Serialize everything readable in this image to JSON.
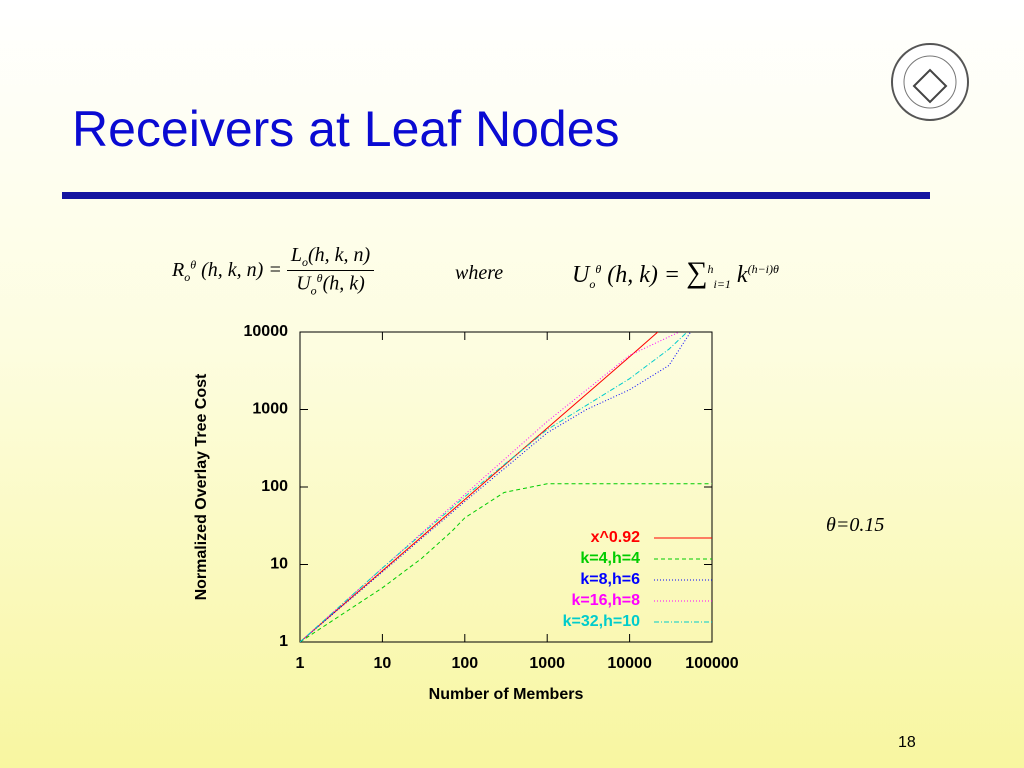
{
  "slide": {
    "title": "Receivers at Leaf Nodes",
    "page_number": "18",
    "annotation": "θ=0.15",
    "formula_left": {
      "lhs": {
        "base": "R",
        "sub": "o",
        "sup": "θ",
        "args": "(h, k, n) ="
      },
      "num": {
        "base": "L",
        "sub": "o",
        "args": "(h, k, n)"
      },
      "den": {
        "base": "U",
        "sub": "o",
        "sup": "θ",
        "args": "(h, k)"
      }
    },
    "where": "where",
    "formula_right": {
      "base": "U",
      "sub": "o",
      "sup": "θ",
      "args": "(h, k) =",
      "sum": "∑",
      "sum_top": "h",
      "sum_bottom": "i=1",
      "term": "k",
      "exp": "(h−i)θ"
    }
  },
  "chart_data": {
    "type": "line",
    "x_label": "Number of Members",
    "y_label": "Normalized Overlay Tree Cost",
    "x_log": true,
    "y_log": true,
    "xlim": [
      1,
      100000
    ],
    "ylim": [
      1,
      10000
    ],
    "xticks": [
      1,
      10,
      100,
      1000,
      10000,
      100000
    ],
    "yticks": [
      1,
      10,
      100,
      1000,
      10000
    ],
    "grid": false,
    "legend": "lower right",
    "series": [
      {
        "name": "x^0.92",
        "color": "#ff0000",
        "dash": "solid",
        "x": [
          1,
          10,
          100,
          1000,
          10000,
          22000
        ],
        "values": [
          1,
          8.3,
          69,
          575,
          4786,
          10000
        ]
      },
      {
        "name": "k=4,h=4",
        "color": "#00cc00",
        "dash": "dashed",
        "x": [
          1,
          10,
          30,
          70,
          100,
          300,
          1000,
          100000
        ],
        "values": [
          1,
          5,
          12,
          27,
          40,
          85,
          110,
          110
        ]
      },
      {
        "name": "k=8,h=6",
        "color": "#0000ff",
        "dash": "dotted",
        "x": [
          1,
          10,
          100,
          1000,
          3000,
          10000,
          30000,
          55000
        ],
        "values": [
          1,
          8,
          65,
          500,
          1000,
          1800,
          3700,
          10000
        ]
      },
      {
        "name": "k=16,h=8",
        "color": "#ff00ff",
        "dash": "dotted",
        "x": [
          1,
          10,
          100,
          1000,
          10000,
          40000
        ],
        "values": [
          1,
          9,
          80,
          700,
          5000,
          10000
        ]
      },
      {
        "name": "k=32,h=10",
        "color": "#00cccc",
        "dash": "dashdot",
        "x": [
          1,
          10,
          100,
          1000,
          10000,
          30000,
          50000
        ],
        "values": [
          1,
          9,
          75,
          550,
          2500,
          6000,
          10000
        ]
      }
    ]
  }
}
